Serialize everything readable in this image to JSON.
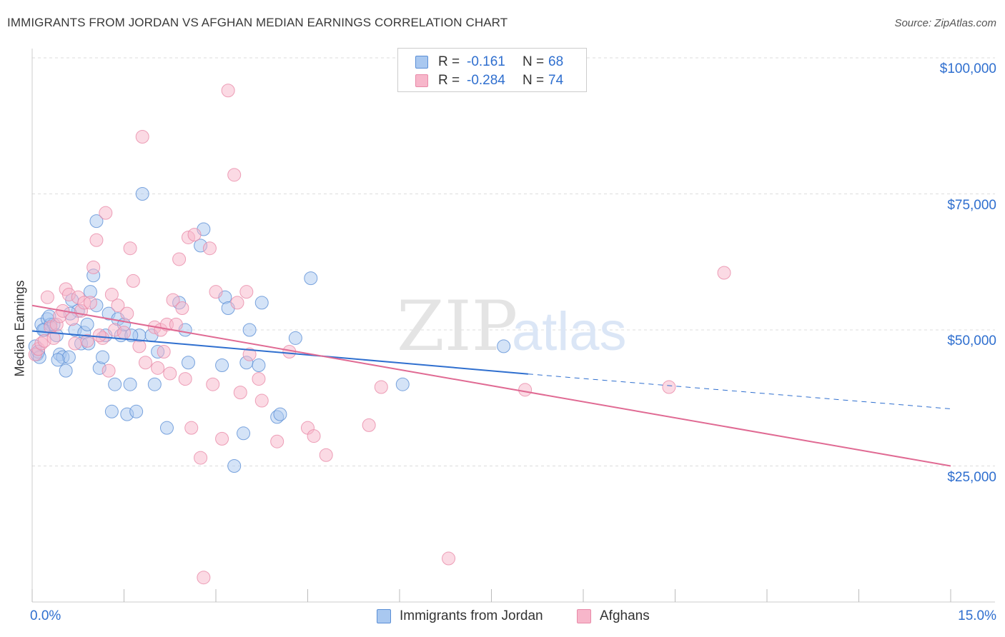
{
  "header": {
    "title": "IMMIGRANTS FROM JORDAN VS AFGHAN MEDIAN EARNINGS CORRELATION CHART",
    "source": "Source: ZipAtlas.com"
  },
  "stats": {
    "rows": [
      {
        "r_label": "R =",
        "r_value": "-0.161",
        "n_label": "N =",
        "n_value": "68"
      },
      {
        "r_label": "R =",
        "r_value": "-0.284",
        "n_label": "N =",
        "n_value": "74"
      }
    ]
  },
  "legend": {
    "items": [
      {
        "label": "Immigrants from Jordan"
      },
      {
        "label": "Afghans"
      }
    ]
  },
  "axes": {
    "x_min_label": "0.0%",
    "x_max_label": "15.0%",
    "y_label": "Median Earnings",
    "y_ticks": [
      "$100,000",
      "$75,000",
      "$50,000",
      "$25,000"
    ]
  },
  "watermark": {
    "zip": "ZIP",
    "atlas": "atlas"
  },
  "colors": {
    "blue_fill": "#a9c8f0",
    "blue_stroke": "#5b8fd6",
    "blue_line": "#2f6fcf",
    "pink_fill": "#f7b6ca",
    "pink_stroke": "#e88aa8",
    "pink_line": "#e06a93",
    "grid": "#dddddd",
    "axis_text": "#2f6fcf"
  },
  "chart_data": {
    "type": "scatter",
    "xlim": [
      0,
      15
    ],
    "ylim": [
      0,
      100000
    ],
    "y_ticks": [
      25000,
      50000,
      75000,
      100000
    ],
    "x_unit": "%",
    "grid": true,
    "legend_position": "bottom-center",
    "series": [
      {
        "name": "Immigrants from Jordan",
        "color": "#a9c8f0",
        "points": [
          [
            0.05,
            47000
          ],
          [
            0.08,
            45500
          ],
          [
            0.1,
            46000
          ],
          [
            0.12,
            45000
          ],
          [
            0.15,
            51000
          ],
          [
            0.2,
            50000
          ],
          [
            0.25,
            52000
          ],
          [
            0.3,
            51000
          ],
          [
            0.35,
            51000
          ],
          [
            0.4,
            49000
          ],
          [
            0.45,
            45500
          ],
          [
            0.5,
            45000
          ],
          [
            0.55,
            42500
          ],
          [
            0.6,
            45000
          ],
          [
            0.65,
            55500
          ],
          [
            0.7,
            50000
          ],
          [
            0.75,
            53500
          ],
          [
            0.8,
            47500
          ],
          [
            0.85,
            49500
          ],
          [
            0.9,
            51000
          ],
          [
            0.95,
            57000
          ],
          [
            1.0,
            60000
          ],
          [
            1.05,
            54500
          ],
          [
            1.05,
            70000
          ],
          [
            1.1,
            43000
          ],
          [
            1.15,
            45000
          ],
          [
            1.2,
            49000
          ],
          [
            1.25,
            53000
          ],
          [
            1.3,
            35000
          ],
          [
            1.35,
            40000
          ],
          [
            1.4,
            52000
          ],
          [
            1.45,
            49000
          ],
          [
            1.5,
            51000
          ],
          [
            1.55,
            34500
          ],
          [
            1.6,
            40000
          ],
          [
            1.7,
            35000
          ],
          [
            1.75,
            49000
          ],
          [
            1.8,
            75000
          ],
          [
            1.95,
            49000
          ],
          [
            2.0,
            40000
          ],
          [
            2.05,
            46000
          ],
          [
            2.2,
            32000
          ],
          [
            2.4,
            55000
          ],
          [
            2.5,
            50000
          ],
          [
            2.55,
            44000
          ],
          [
            2.75,
            65500
          ],
          [
            2.8,
            68500
          ],
          [
            3.1,
            43500
          ],
          [
            3.15,
            56000
          ],
          [
            3.2,
            54000
          ],
          [
            3.3,
            25000
          ],
          [
            3.45,
            31000
          ],
          [
            3.5,
            44000
          ],
          [
            3.55,
            50000
          ],
          [
            3.7,
            43500
          ],
          [
            3.75,
            55000
          ],
          [
            4.0,
            34000
          ],
          [
            4.05,
            34500
          ],
          [
            4.3,
            48500
          ],
          [
            4.55,
            59500
          ],
          [
            6.05,
            40000
          ],
          [
            7.7,
            47000
          ],
          [
            0.18,
            50000
          ],
          [
            0.28,
            52500
          ],
          [
            0.42,
            44500
          ],
          [
            0.62,
            53000
          ],
          [
            0.92,
            47500
          ],
          [
            1.62,
            49000
          ]
        ]
      },
      {
        "name": "Afghans",
        "color": "#f7b6ca",
        "points": [
          [
            0.05,
            45500
          ],
          [
            0.1,
            46500
          ],
          [
            0.15,
            47500
          ],
          [
            0.2,
            48000
          ],
          [
            0.25,
            56000
          ],
          [
            0.3,
            50500
          ],
          [
            0.4,
            51000
          ],
          [
            0.45,
            52500
          ],
          [
            0.5,
            53500
          ],
          [
            0.55,
            57500
          ],
          [
            0.6,
            56500
          ],
          [
            0.7,
            47500
          ],
          [
            0.75,
            56000
          ],
          [
            0.8,
            53500
          ],
          [
            0.85,
            55000
          ],
          [
            0.9,
            48000
          ],
          [
            0.95,
            55000
          ],
          [
            1.0,
            61500
          ],
          [
            1.05,
            66500
          ],
          [
            1.15,
            48500
          ],
          [
            1.2,
            71500
          ],
          [
            1.25,
            42500
          ],
          [
            1.3,
            56500
          ],
          [
            1.35,
            50000
          ],
          [
            1.4,
            54500
          ],
          [
            1.5,
            49500
          ],
          [
            1.55,
            53000
          ],
          [
            1.6,
            65000
          ],
          [
            1.65,
            59000
          ],
          [
            1.75,
            47000
          ],
          [
            1.8,
            85500
          ],
          [
            1.85,
            44000
          ],
          [
            2.0,
            50500
          ],
          [
            2.05,
            43000
          ],
          [
            2.1,
            50000
          ],
          [
            2.15,
            46000
          ],
          [
            2.2,
            51000
          ],
          [
            2.25,
            42000
          ],
          [
            2.3,
            55500
          ],
          [
            2.4,
            63000
          ],
          [
            2.45,
            54000
          ],
          [
            2.5,
            41000
          ],
          [
            2.55,
            67000
          ],
          [
            2.6,
            32000
          ],
          [
            2.65,
            67500
          ],
          [
            2.75,
            26500
          ],
          [
            2.8,
            4500
          ],
          [
            2.9,
            65000
          ],
          [
            2.95,
            40000
          ],
          [
            3.0,
            57000
          ],
          [
            3.1,
            30000
          ],
          [
            3.2,
            94000
          ],
          [
            3.3,
            78500
          ],
          [
            3.35,
            55000
          ],
          [
            3.4,
            38500
          ],
          [
            3.5,
            57000
          ],
          [
            3.55,
            45500
          ],
          [
            3.7,
            41000
          ],
          [
            3.75,
            37000
          ],
          [
            4.0,
            29500
          ],
          [
            4.2,
            46000
          ],
          [
            4.5,
            32000
          ],
          [
            4.6,
            30500
          ],
          [
            4.8,
            27000
          ],
          [
            5.5,
            32500
          ],
          [
            5.7,
            39500
          ],
          [
            6.8,
            8000
          ],
          [
            8.05,
            39000
          ],
          [
            10.4,
            39500
          ],
          [
            11.3,
            60500
          ],
          [
            0.35,
            48500
          ],
          [
            0.65,
            52000
          ],
          [
            1.1,
            49000
          ],
          [
            2.35,
            51000
          ]
        ]
      }
    ],
    "trendlines": [
      {
        "series": "Immigrants from Jordan",
        "x": [
          0,
          8.1
        ],
        "y": [
          49800,
          41900
        ],
        "dashed_extension_to": [
          15,
          35500
        ]
      },
      {
        "series": "Afghans",
        "x": [
          0,
          15
        ],
        "y": [
          54500,
          25000
        ]
      }
    ]
  }
}
